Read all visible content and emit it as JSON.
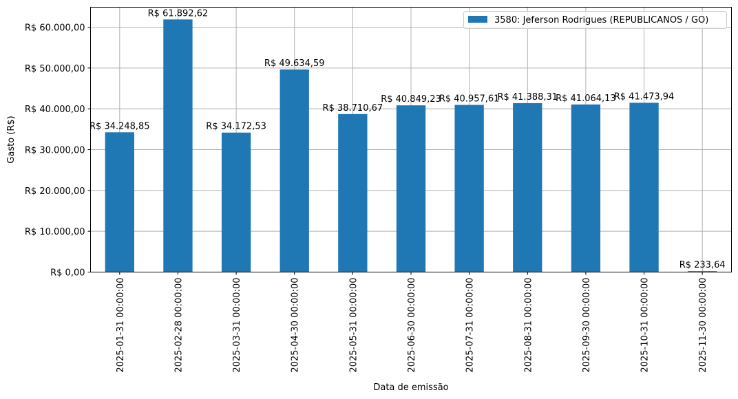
{
  "chart_data": {
    "type": "bar",
    "title": "",
    "xlabel": "Data de emissão",
    "ylabel": "Gasto (R$)",
    "ylim": [
      0,
      65000
    ],
    "grid": true,
    "legend_position": "upper right",
    "categories": [
      "2025-01-31 00:00:00",
      "2025-02-28 00:00:00",
      "2025-03-31 00:00:00",
      "2025-04-30 00:00:00",
      "2025-05-31 00:00:00",
      "2025-06-30 00:00:00",
      "2025-07-31 00:00:00",
      "2025-08-31 00:00:00",
      "2025-09-30 00:00:00",
      "2025-10-31 00:00:00",
      "2025-11-30 00:00:00"
    ],
    "series": [
      {
        "name": "3580: Jeferson Rodrigues (REPUBLICANOS / GO)",
        "color": "#1f77b4",
        "values": [
          34248.85,
          61892.62,
          34172.53,
          49634.59,
          38710.67,
          40849.23,
          40957.61,
          41388.31,
          41064.13,
          41473.94,
          233.64
        ],
        "labels": [
          "R$ 34.248,85",
          "R$ 61.892,62",
          "R$ 34.172,53",
          "R$ 49.634,59",
          "R$ 38.710,67",
          "R$ 40.849,23",
          "R$ 40.957,61",
          "R$ 41.388,31",
          "R$ 41.064,13",
          "R$ 41.473,94",
          "R$ 233,64"
        ]
      }
    ],
    "yticks": [
      0,
      10000,
      20000,
      30000,
      40000,
      50000,
      60000
    ],
    "ytick_labels": [
      "R$ 0,00",
      "R$ 10.000,00",
      "R$ 20.000,00",
      "R$ 30.000,00",
      "R$ 40.000,00",
      "R$ 50.000,00",
      "R$ 60.000,00"
    ]
  }
}
